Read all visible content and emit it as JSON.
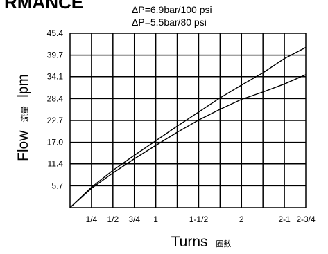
{
  "header": {
    "title_fragment": "RMANCE"
  },
  "chart_data": {
    "type": "line",
    "xlabel": "Turns",
    "xlabel_cjk": "圈數",
    "ylabel": "Flow",
    "ylabel_cjk": "流量",
    "ylabel_unit": "lpm",
    "x_ticks": [
      {
        "value": 0.25,
        "label": "1/4"
      },
      {
        "value": 0.5,
        "label": "1/2"
      },
      {
        "value": 0.75,
        "label": "3/4"
      },
      {
        "value": 1.0,
        "label": "1"
      },
      {
        "value": 1.5,
        "label": "1-1/2"
      },
      {
        "value": 2.0,
        "label": "2"
      },
      {
        "value": 2.5,
        "label": "2-1"
      },
      {
        "value": 2.75,
        "label": "2-3/4"
      }
    ],
    "x_gridlines": [
      0.25,
      0.5,
      0.75,
      1.0,
      1.25,
      1.5,
      1.75,
      2.0,
      2.25,
      2.5,
      2.75
    ],
    "y_ticks": [
      {
        "value": 5.7,
        "label": "5.7"
      },
      {
        "value": 11.4,
        "label": "11.4"
      },
      {
        "value": 17.0,
        "label": "17.0"
      },
      {
        "value": 22.7,
        "label": "22.7"
      },
      {
        "value": 28.4,
        "label": "28.4"
      },
      {
        "value": 34.1,
        "label": "34.1"
      },
      {
        "value": 39.7,
        "label": "39.7"
      },
      {
        "value": 45.4,
        "label": "45.4"
      }
    ],
    "xlim": [
      0,
      2.75
    ],
    "ylim": [
      0,
      45.4
    ],
    "grid": true,
    "series": [
      {
        "name": "ΔP=6.9bar/100 psi",
        "x": [
          0,
          0.25,
          0.5,
          0.75,
          1.0,
          1.25,
          1.5,
          1.75,
          2.0,
          2.25,
          2.5,
          2.75
        ],
        "y": [
          0,
          5.3,
          9.7,
          13.6,
          17.4,
          21.2,
          24.9,
          28.6,
          31.9,
          35.1,
          38.8,
          41.7
        ]
      },
      {
        "name": "ΔP=5.5bar/80 psi",
        "x": [
          0,
          0.25,
          0.5,
          0.75,
          1.0,
          1.25,
          1.5,
          1.75,
          2.0,
          2.25,
          2.5,
          2.75
        ],
        "y": [
          0,
          5.0,
          9.0,
          12.7,
          16.2,
          19.6,
          22.8,
          25.6,
          28.2,
          30.1,
          32.2,
          34.6
        ]
      }
    ]
  }
}
